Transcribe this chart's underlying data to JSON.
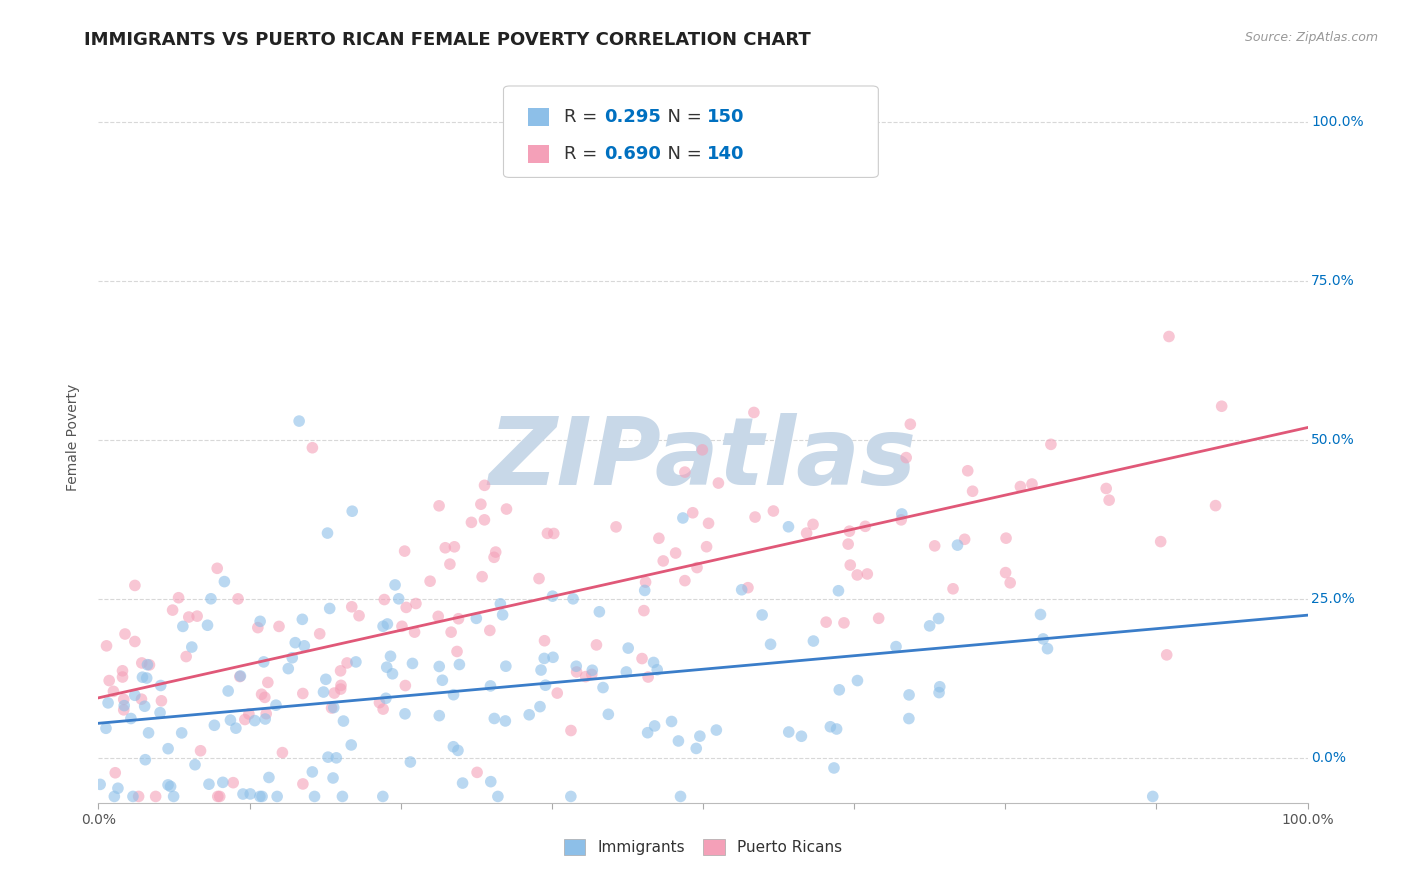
{
  "title": "IMMIGRANTS VS PUERTO RICAN FEMALE POVERTY CORRELATION CHART",
  "source": "Source: ZipAtlas.com",
  "ylabel": "Female Poverty",
  "immigrants_color": "#8dbfe8",
  "puerto_rican_color": "#f4a0b8",
  "immigrants_line_color": "#3a7dc9",
  "puerto_rican_line_color": "#e05878",
  "immigrants_scatter_alpha": 0.6,
  "puerto_rican_scatter_alpha": 0.6,
  "R_immigrants": 0.295,
  "N_immigrants": 150,
  "R_puerto_rican": 0.69,
  "N_puerto_rican": 140,
  "legend_label_color": "#222222",
  "legend_value_color": "#0070c0",
  "watermark_text": "ZIPatlas",
  "watermark_color": "#c8d8e8",
  "background_color": "#ffffff",
  "grid_color": "#d8d8d8",
  "title_fontsize": 13,
  "axis_label_fontsize": 10,
  "tick_label_fontsize": 10,
  "right_tick_color": "#0070c0",
  "yticks": [
    0.0,
    0.25,
    0.5,
    0.75,
    1.0
  ],
  "ytick_labels": [
    "0.0%",
    "25.0%",
    "50.0%",
    "75.0%",
    "100.0%"
  ],
  "xlim": [
    0.0,
    1.0
  ],
  "ylim": [
    -0.07,
    1.08
  ],
  "imm_line_x0": 0.0,
  "imm_line_x1": 1.0,
  "imm_line_y0": 0.055,
  "imm_line_y1": 0.225,
  "pr_line_x0": 0.0,
  "pr_line_x1": 1.0,
  "pr_line_y0": 0.095,
  "pr_line_y1": 0.52,
  "scatter_size": 70
}
